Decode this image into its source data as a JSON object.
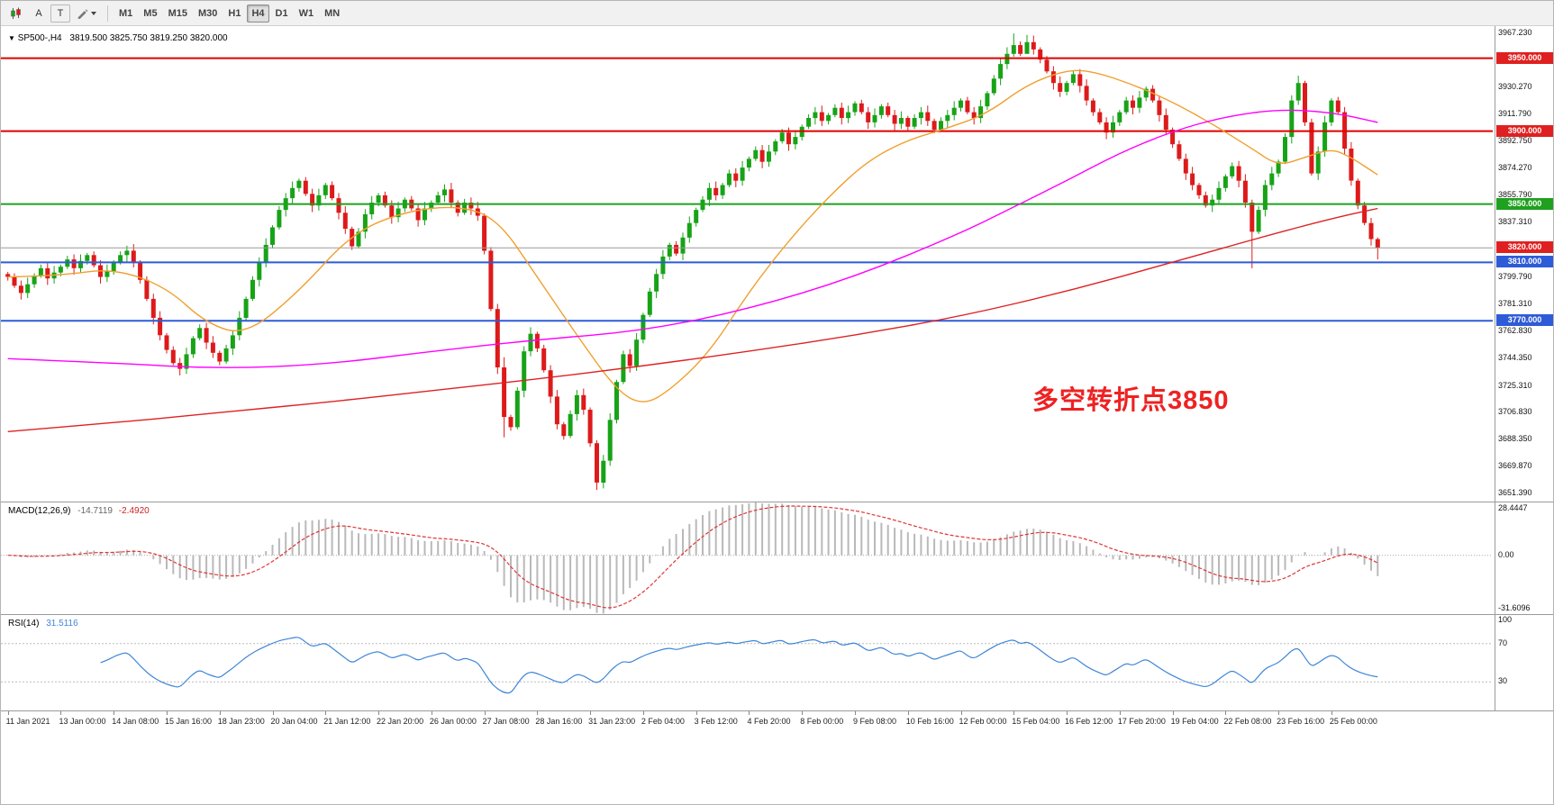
{
  "toolbar": {
    "cursor_button": "A",
    "text_button": "T",
    "timeframes": [
      "M1",
      "M5",
      "M15",
      "M30",
      "H1",
      "H4",
      "D1",
      "W1",
      "MN"
    ],
    "active": "H4"
  },
  "symbol_info": {
    "marker": "▼",
    "name": "SP500-,H4",
    "ohlc": "3819.500 3825.750 3819.250 3820.000"
  },
  "annotation": {
    "text": "多空转折点3850",
    "color": "#ee2222"
  },
  "colors": {
    "bull": "#17a317",
    "bear": "#dd1a1a",
    "macd_hist": "#b9b9b9",
    "macd_signal": "#e03535",
    "rsi_line": "#3e86d8"
  },
  "price_axis": {
    "min": 3646,
    "max": 3972,
    "labels": [
      "3967.230",
      "3930.270",
      "3911.790",
      "3892.750",
      "3874.270",
      "3855.790",
      "3837.310",
      "3799.790",
      "3781.310",
      "3762.830",
      "3744.350",
      "3725.310",
      "3706.830",
      "3688.350",
      "3669.870",
      "3651.390"
    ]
  },
  "hlines": [
    {
      "price": 3950,
      "label": "3950.000",
      "color": "#e00000",
      "badge": "#e02020",
      "width": 2
    },
    {
      "price": 3900,
      "label": "3900.000",
      "color": "#e00000",
      "badge": "#e02020",
      "width": 2
    },
    {
      "price": 3850,
      "label": "3850.000",
      "color": "#1fa11f",
      "badge": "#1fa11f",
      "width": 2
    },
    {
      "price": 3820,
      "label": "3820.000",
      "color": "#9a9a9a",
      "badge": "#e02020",
      "width": 1
    },
    {
      "price": 3810,
      "label": "3810.000",
      "color": "#2e5bd7",
      "badge": "#2e5bd7",
      "width": 2
    },
    {
      "price": 3770,
      "label": "3770.000",
      "color": "#2e5bd7",
      "badge": "#2e5bd7",
      "width": 2
    }
  ],
  "chart_data": {
    "type": "candlestick",
    "symbol": "SP500-",
    "timeframe": "H4",
    "ylim": [
      3651.39,
      3967.23
    ],
    "label_step_bars": 8,
    "x_labels": [
      "11 Jan 2021",
      "13 Jan 00:00",
      "14 Jan 08:00",
      "15 Jan 16:00",
      "18 Jan 23:00",
      "20 Jan 04:00",
      "21 Jan 12:00",
      "22 Jan 20:00",
      "26 Jan 00:00",
      "27 Jan 08:00",
      "28 Jan 16:00",
      "31 Jan 23:00",
      "2 Feb 04:00",
      "3 Feb 12:00",
      "4 Feb 20:00",
      "8 Feb 00:00",
      "9 Feb 08:00",
      "10 Feb 16:00",
      "12 Feb 00:00",
      "15 Feb 04:00",
      "16 Feb 12:00",
      "17 Feb 20:00",
      "19 Feb 04:00",
      "22 Feb 08:00",
      "23 Feb 16:00",
      "25 Feb 00:00"
    ],
    "candles": {
      "open_first": 3802,
      "closes": [
        3800,
        3794,
        3789,
        3795,
        3801,
        3806,
        3799,
        3803,
        3807,
        3812,
        3806,
        3811,
        3815,
        3808,
        3800,
        3804,
        3810,
        3815,
        3818,
        3810,
        3798,
        3785,
        3772,
        3760,
        3750,
        3741,
        3737,
        3747,
        3758,
        3765,
        3755,
        3748,
        3742,
        3751,
        3760,
        3772,
        3785,
        3798,
        3810,
        3822,
        3834,
        3846,
        3854,
        3861,
        3866,
        3857,
        3849,
        3856,
        3863,
        3854,
        3844,
        3833,
        3821,
        3831,
        3843,
        3851,
        3856,
        3849,
        3841,
        3847,
        3853,
        3847,
        3839,
        3847,
        3851,
        3856,
        3860,
        3851,
        3844,
        3851,
        3847,
        3842,
        3818,
        3778,
        3738,
        3704,
        3697,
        3722,
        3749,
        3761,
        3751,
        3736,
        3718,
        3699,
        3691,
        3706,
        3719,
        3709,
        3686,
        3659,
        3674,
        3702,
        3728,
        3747,
        3739,
        3757,
        3774,
        3790,
        3802,
        3814,
        3822,
        3816,
        3827,
        3837,
        3846,
        3853,
        3861,
        3856,
        3863,
        3871,
        3866,
        3875,
        3881,
        3887,
        3879,
        3886,
        3893,
        3899,
        3891,
        3896,
        3903,
        3909,
        3913,
        3907,
        3911,
        3916,
        3909,
        3913,
        3919,
        3913,
        3906,
        3911,
        3917,
        3911,
        3905,
        3909,
        3903,
        3909,
        3913,
        3907,
        3901,
        3907,
        3911,
        3916,
        3921,
        3913,
        3909,
        3917,
        3926,
        3936,
        3946,
        3953,
        3959,
        3953,
        3961,
        3956,
        3949,
        3941,
        3933,
        3927,
        3933,
        3939,
        3931,
        3921,
        3913,
        3906,
        3899,
        3906,
        3913,
        3921,
        3916,
        3923,
        3929,
        3921,
        3911,
        3901,
        3891,
        3881,
        3871,
        3863,
        3856,
        3849,
        3853,
        3861,
        3869,
        3876,
        3866,
        3851,
        3831,
        3846,
        3863,
        3871,
        3879,
        3896,
        3921,
        3933,
        3906,
        3871,
        3886,
        3906,
        3921,
        3913,
        3888,
        3866,
        3849,
        3837,
        3826,
        3820
      ],
      "wick_overrides": {
        "75": [
          3745,
          3690
        ],
        "89": [
          3688,
          3654
        ],
        "90": [
          3678,
          3655
        ],
        "152": [
          3967,
          3951
        ],
        "154": [
          3966,
          3953
        ],
        "188": [
          3853,
          3806
        ],
        "195": [
          3938,
          3918
        ],
        "207": [
          3827,
          3812
        ]
      }
    },
    "overlays": [
      {
        "name": "ma-fast-orange",
        "color": "#f0a030",
        "points": [
          [
            0,
            3800
          ],
          [
            8,
            3801
          ],
          [
            16,
            3806
          ],
          [
            24,
            3793
          ],
          [
            30,
            3768
          ],
          [
            36,
            3760
          ],
          [
            44,
            3790
          ],
          [
            52,
            3830
          ],
          [
            60,
            3845
          ],
          [
            68,
            3849
          ],
          [
            74,
            3840
          ],
          [
            80,
            3800
          ],
          [
            86,
            3760
          ],
          [
            92,
            3722
          ],
          [
            96,
            3712
          ],
          [
            100,
            3722
          ],
          [
            106,
            3748
          ],
          [
            112,
            3790
          ],
          [
            118,
            3825
          ],
          [
            124,
            3855
          ],
          [
            130,
            3880
          ],
          [
            136,
            3894
          ],
          [
            142,
            3902
          ],
          [
            148,
            3912
          ],
          [
            154,
            3932
          ],
          [
            160,
            3942
          ],
          [
            164,
            3941
          ],
          [
            170,
            3932
          ],
          [
            176,
            3920
          ],
          [
            182,
            3905
          ],
          [
            188,
            3888
          ],
          [
            192,
            3876
          ],
          [
            196,
            3882
          ],
          [
            200,
            3888
          ],
          [
            203,
            3882
          ],
          [
            207,
            3870
          ]
        ]
      },
      {
        "name": "ma-medium-magenta",
        "color": "#ff00ff",
        "points": [
          [
            0,
            3744
          ],
          [
            16,
            3741
          ],
          [
            32,
            3737
          ],
          [
            48,
            3740
          ],
          [
            64,
            3749
          ],
          [
            80,
            3757
          ],
          [
            96,
            3763
          ],
          [
            112,
            3778
          ],
          [
            128,
            3800
          ],
          [
            144,
            3830
          ],
          [
            152,
            3848
          ],
          [
            160,
            3866
          ],
          [
            168,
            3885
          ],
          [
            176,
            3900
          ],
          [
            184,
            3910
          ],
          [
            192,
            3915
          ],
          [
            200,
            3913
          ],
          [
            207,
            3906
          ]
        ]
      },
      {
        "name": "ma-slow-red",
        "color": "#dd2222",
        "points": [
          [
            0,
            3694
          ],
          [
            16,
            3700
          ],
          [
            32,
            3707
          ],
          [
            48,
            3714
          ],
          [
            64,
            3722
          ],
          [
            80,
            3730
          ],
          [
            96,
            3739
          ],
          [
            112,
            3749
          ],
          [
            128,
            3760
          ],
          [
            144,
            3773
          ],
          [
            160,
            3790
          ],
          [
            176,
            3810
          ],
          [
            190,
            3828
          ],
          [
            200,
            3840
          ],
          [
            207,
            3847
          ]
        ]
      }
    ],
    "macd": {
      "label": "MACD(12,26,9)",
      "main_value": "-14.7119",
      "signal_value": "-2.4920",
      "params": [
        12,
        26,
        9
      ],
      "axis_labels": [
        "28.4447",
        "0.00",
        "-31.6096"
      ]
    },
    "rsi": {
      "label": "RSI(14)",
      "value": "31.5116",
      "period": 14,
      "levels": [
        70,
        30
      ],
      "axis_labels": [
        "100",
        "70",
        "30"
      ]
    }
  }
}
